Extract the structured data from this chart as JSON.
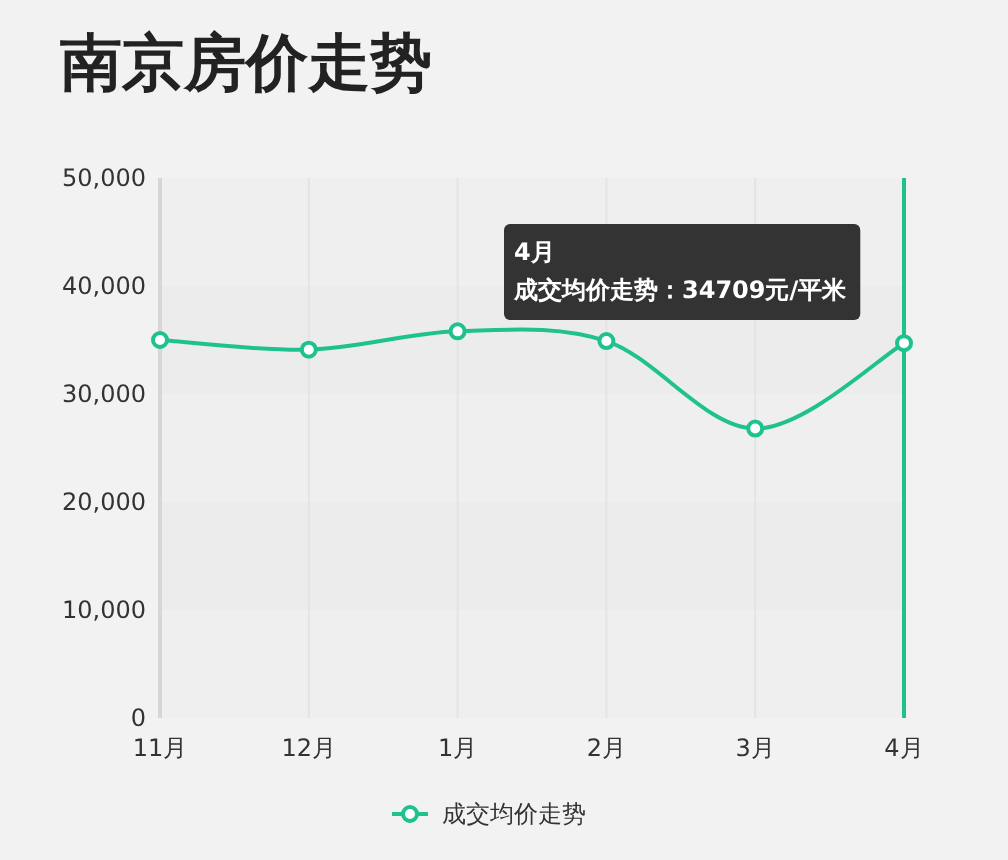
{
  "chart_data": {
    "type": "line",
    "title": "南京房价走势",
    "categories": [
      "11月",
      "12月",
      "1月",
      "2月",
      "3月",
      "4月"
    ],
    "series": [
      {
        "name": "成交均价走势",
        "color": "#1fc28f",
        "values": [
          35000,
          34100,
          35800,
          34900,
          26800,
          34709
        ]
      }
    ],
    "ylim": [
      0,
      50000
    ],
    "yticks": [
      {
        "value": 0,
        "label": "0"
      },
      {
        "value": 10000,
        "label": "10,000"
      },
      {
        "value": 20000,
        "label": "20,000"
      },
      {
        "value": 30000,
        "label": "30,000"
      },
      {
        "value": 40000,
        "label": "40,000"
      },
      {
        "value": 50000,
        "label": "50,000"
      }
    ],
    "ref_lines": [
      {
        "axis": "x",
        "value": "4月",
        "color": "#1fc28f"
      }
    ],
    "annotations": [
      "4月",
      "成交均价走势：34709元/平米"
    ],
    "grid": "x",
    "legend": "bottom",
    "marker": "circle",
    "line_style": "solid"
  }
}
